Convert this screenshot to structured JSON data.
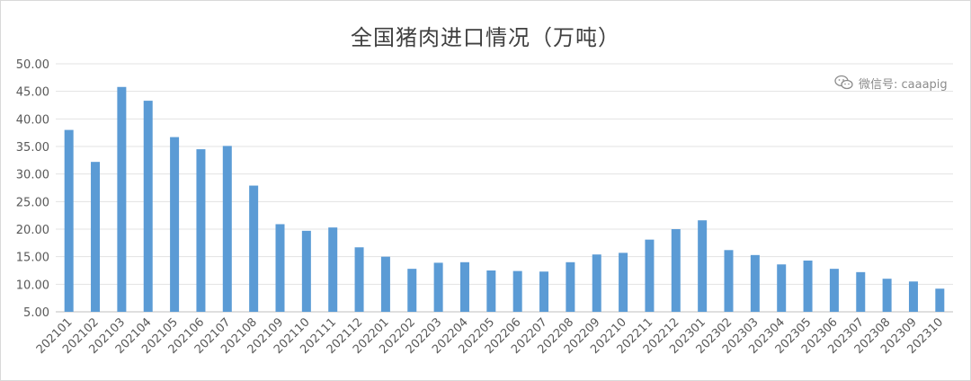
{
  "chart_data": {
    "type": "bar",
    "title": "全国猪肉进口情况（万吨）",
    "categories": [
      "202101",
      "202102",
      "202103",
      "202104",
      "202105",
      "202106",
      "202107",
      "202108",
      "202109",
      "202110",
      "202111",
      "202112",
      "202201",
      "202202",
      "202203",
      "202204",
      "202205",
      "202206",
      "202207",
      "202208",
      "202209",
      "202210",
      "202211",
      "202212",
      "202301",
      "202302",
      "202303",
      "202304",
      "202305",
      "202306",
      "202307",
      "202308",
      "202309",
      "202310"
    ],
    "values": [
      38.0,
      32.2,
      45.8,
      43.3,
      36.7,
      34.5,
      35.1,
      27.9,
      20.9,
      19.7,
      20.3,
      16.7,
      15.0,
      12.8,
      13.9,
      14.0,
      12.5,
      12.4,
      12.3,
      14.0,
      15.4,
      15.7,
      18.1,
      20.0,
      21.6,
      16.2,
      15.3,
      13.6,
      14.3,
      12.8,
      12.2,
      11.0,
      10.5,
      9.2
    ],
    "yticks": [
      "5.00",
      "10.00",
      "15.00",
      "20.00",
      "25.00",
      "30.00",
      "35.00",
      "40.00",
      "45.00",
      "50.00"
    ],
    "ylim": [
      5,
      50
    ],
    "xlabel": "",
    "ylabel": "",
    "grid": true,
    "bar_color": "#5b9bd5"
  },
  "watermark": {
    "icon": "wechat-icon",
    "text": "微信号: caaapig"
  }
}
